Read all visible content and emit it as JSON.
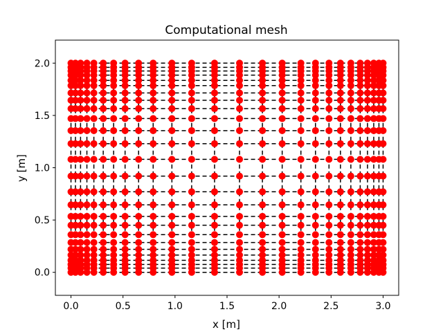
{
  "chart_data": {
    "type": "scatter",
    "title": "Computational mesh",
    "xlabel": "x [m]",
    "ylabel": "y [m]",
    "xlim": [
      -0.15,
      3.15
    ],
    "ylim": [
      -0.22,
      2.22
    ],
    "xticks": [
      0.0,
      0.5,
      1.0,
      1.5,
      2.0,
      2.5,
      3.0
    ],
    "xtick_labels": [
      "0.0",
      "0.5",
      "1.0",
      "1.5",
      "2.0",
      "2.5",
      "3.0"
    ],
    "yticks": [
      0.0,
      0.5,
      1.0,
      1.5,
      2.0
    ],
    "ytick_labels": [
      "0.0",
      "0.5",
      "1.0",
      "1.5",
      "2.0"
    ],
    "grid": false,
    "x_nodes": [
      0.0,
      0.043,
      0.092,
      0.153,
      0.22,
      0.31,
      0.41,
      0.52,
      0.65,
      0.79,
      0.97,
      1.16,
      1.38,
      1.62,
      1.84,
      2.03,
      2.21,
      2.35,
      2.48,
      2.59,
      2.69,
      2.78,
      2.85,
      2.91,
      2.96,
      3.0
    ],
    "y_nodes": [
      0.0,
      0.04,
      0.075,
      0.115,
      0.165,
      0.22,
      0.285,
      0.36,
      0.45,
      0.535,
      0.645,
      0.77,
      0.92,
      1.08,
      1.23,
      1.355,
      1.47,
      1.565,
      1.645,
      1.715,
      1.785,
      1.835,
      1.885,
      1.925,
      1.96,
      2.0
    ],
    "series": [
      {
        "marker": "circle",
        "color": "#ff0000"
      },
      {
        "marker": "dashed-grid",
        "color": "#000000"
      }
    ]
  }
}
